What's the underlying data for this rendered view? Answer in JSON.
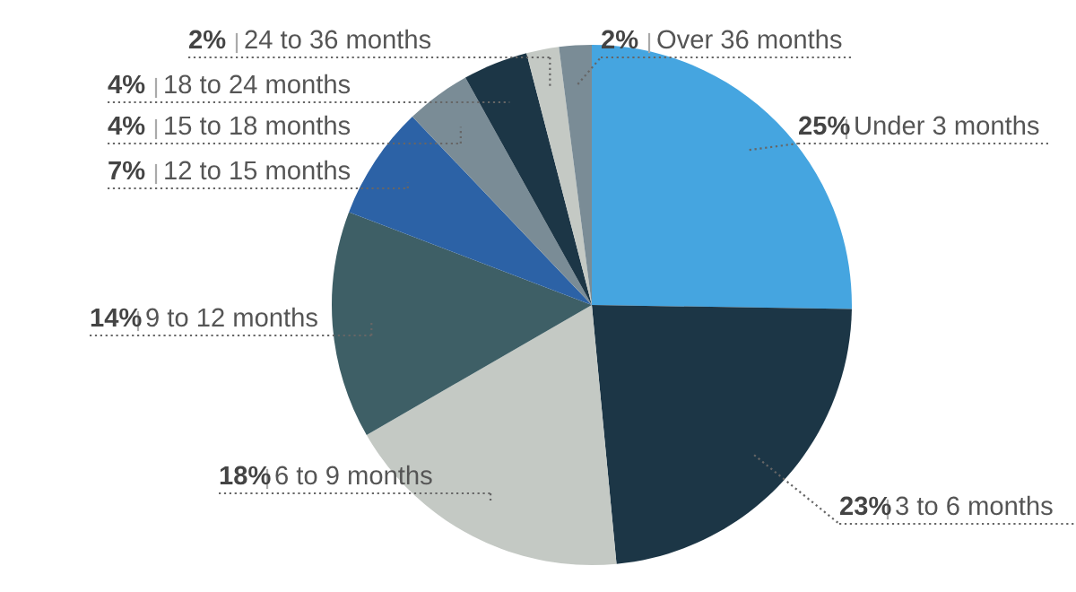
{
  "chart_data": {
    "type": "pie",
    "categories": [
      "Under 3 months",
      "3 to 6 months",
      "6 to 9 months",
      "9 to 12 months",
      "12 to 15 months",
      "15 to 18 months",
      "18 to 24 months",
      "24 to 36 months",
      "Over 36 months"
    ],
    "values": [
      25,
      23,
      18,
      14,
      7,
      4,
      4,
      2,
      2
    ],
    "colors": [
      "#45a5e0",
      "#1c3646",
      "#c4c9c4",
      "#3e5f66",
      "#2c62a6",
      "#7a8c96",
      "#1c3646",
      "#c4c9c4",
      "#7a8c96"
    ],
    "value_labels": [
      "25%",
      "23%",
      "18%",
      "14%",
      "7%",
      "4%",
      "4%",
      "2%",
      "2%"
    ],
    "legend": false
  }
}
